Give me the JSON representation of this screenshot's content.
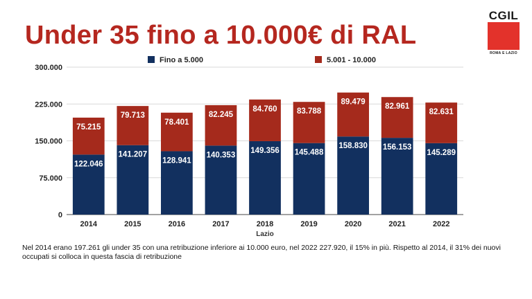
{
  "slide": {
    "title": "Under 35 fino a 10.000€ di RAL",
    "logo": {
      "name": "CGIL",
      "subtitle": "ROMA E LAZIO",
      "color": "#e3322b"
    },
    "note": "Nel 2014 erano 197.261 gli under 35 con una retribuzione inferiore ai 10.000 euro, nel 2022 227.920, il 15% in più. Rispetto al 2014, il 31% dei nuovi occupati si colloca in questa fascia di retribuzione"
  },
  "chart_data": {
    "type": "bar",
    "stacked": true,
    "categories": [
      "2014",
      "2015",
      "2016",
      "2017",
      "2018",
      "2019",
      "2020",
      "2021",
      "2022"
    ],
    "series": [
      {
        "name": "Fino a 5.000",
        "color": "#12305f",
        "values": [
          122046,
          141207,
          128941,
          140353,
          149356,
          145488,
          158830,
          156153,
          145289
        ],
        "labels": [
          "122.046",
          "141.207",
          "128.941",
          "140.353",
          "149.356",
          "145.488",
          "158.830",
          "156.153",
          "145.289"
        ]
      },
      {
        "name": "5.001 - 10.000",
        "color": "#a52a1c",
        "values": [
          75215,
          79713,
          78401,
          82245,
          84760,
          83788,
          89479,
          82961,
          82631
        ],
        "labels": [
          "75.215",
          "79.713",
          "78.401",
          "82.245",
          "84.760",
          "83.788",
          "89.479",
          "82.961",
          "82.631"
        ]
      }
    ],
    "xlabel": "Lazio",
    "ylabel": "",
    "ylim": [
      0,
      300000
    ],
    "yticks": [
      0,
      75000,
      150000,
      225000,
      300000
    ],
    "ytick_labels": [
      "0",
      "75.000",
      "150.000",
      "225.000",
      "300.000"
    ],
    "grid": true,
    "legend": "top"
  }
}
